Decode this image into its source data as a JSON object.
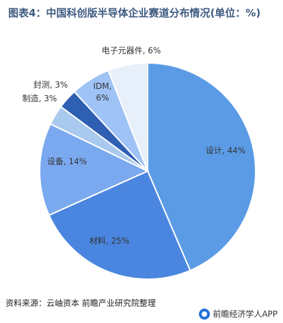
{
  "title": "图表4：中国科创版半导体企业赛道分布情况(单位：%)",
  "source": "资料来源：云岫资本 前瞻产业研究院整理",
  "brand": "前瞻经济学人APP",
  "chart_data": {
    "type": "pie",
    "title": "图表4：中国科创版半导体企业赛道分布情况(单位：%)",
    "slices": [
      {
        "name": "设计",
        "value": 44,
        "label": "设计, 44%",
        "color": "#5b9be6"
      },
      {
        "name": "材料",
        "value": 25,
        "label": "材料, 25%",
        "color": "#4a86e0"
      },
      {
        "name": "设备",
        "value": 14,
        "label": "设备, 14%",
        "color": "#7aa9ef"
      },
      {
        "name": "制造",
        "value": 3,
        "label": "制造, 3%",
        "color": "#a9c9ee"
      },
      {
        "name": "封测",
        "value": 3,
        "label": "封测, 3%",
        "color": "#2f5fb3"
      },
      {
        "name": "IDM",
        "value": 6,
        "label": "IDM, 6%",
        "color": "#9fc3f6"
      },
      {
        "name": "电子元器件",
        "value": 6,
        "label": "电子元器件, 6%",
        "color": "#e7effa"
      }
    ],
    "legend": "none"
  }
}
